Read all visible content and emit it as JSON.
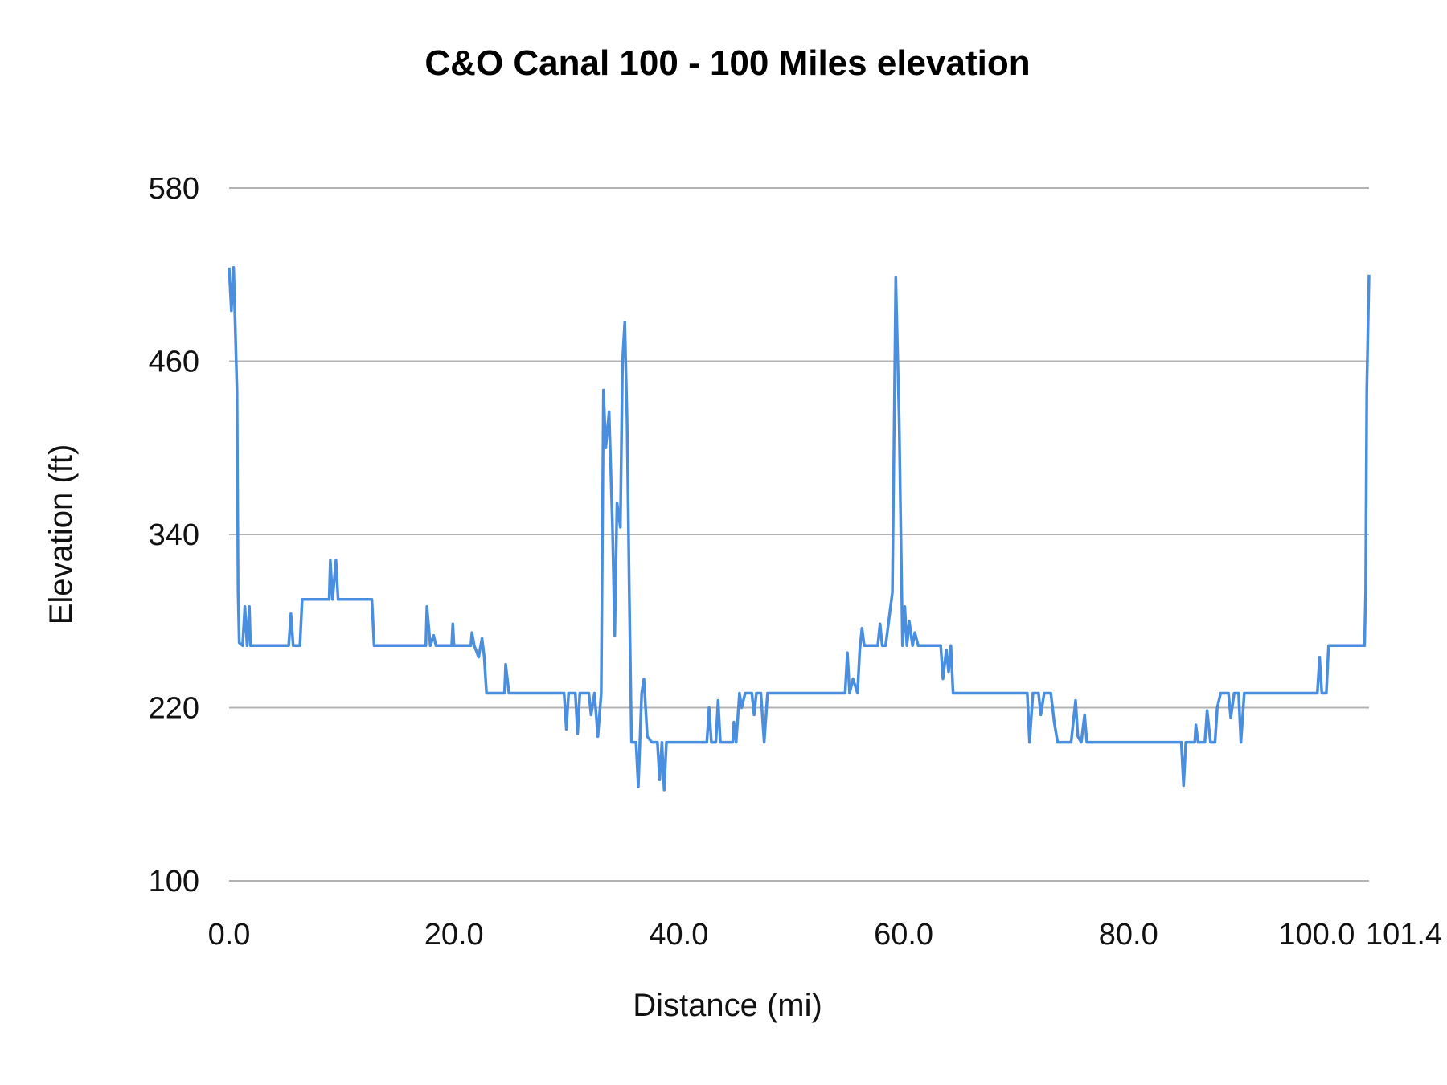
{
  "chart_data": {
    "type": "line",
    "title": "C&O Canal 100 - 100 Miles elevation",
    "xlabel": "Distance (mi)",
    "ylabel": "Elevation (ft)",
    "xlim": [
      0,
      101.4
    ],
    "ylim": [
      100,
      580
    ],
    "x_ticks": [
      0,
      20,
      40,
      60,
      80,
      100,
      101.4
    ],
    "x_tick_labels": [
      "0.0",
      "20.0",
      "40.0",
      "60.0",
      "80.0",
      "100.0",
      "101.4"
    ],
    "y_ticks": [
      100,
      220,
      340,
      460,
      580
    ],
    "y_tick_labels": [
      "100",
      "220",
      "340",
      "460",
      "580"
    ],
    "grid": "horizontal",
    "legend": "none",
    "colors": {
      "series": "#4a8ee0",
      "grid": "#b3b3b3"
    },
    "series": [
      {
        "points": [
          [
            0.0,
            525
          ],
          [
            0.2,
            495
          ],
          [
            0.4,
            525
          ],
          [
            0.7,
            440
          ],
          [
            0.8,
            300
          ],
          [
            0.9,
            265
          ],
          [
            1.2,
            263
          ],
          [
            1.4,
            290
          ],
          [
            1.6,
            263
          ],
          [
            1.8,
            290
          ],
          [
            1.9,
            263
          ],
          [
            5.3,
            263
          ],
          [
            5.5,
            285
          ],
          [
            5.7,
            263
          ],
          [
            6.3,
            263
          ],
          [
            6.5,
            295
          ],
          [
            8.9,
            295
          ],
          [
            9.0,
            322
          ],
          [
            9.2,
            295
          ],
          [
            9.5,
            322
          ],
          [
            9.7,
            295
          ],
          [
            12.7,
            295
          ],
          [
            12.9,
            263
          ],
          [
            17.5,
            263
          ],
          [
            17.6,
            290
          ],
          [
            17.9,
            263
          ],
          [
            18.2,
            270
          ],
          [
            18.4,
            263
          ],
          [
            19.8,
            263
          ],
          [
            19.9,
            278
          ],
          [
            20.0,
            263
          ],
          [
            21.5,
            263
          ],
          [
            21.6,
            272
          ],
          [
            21.8,
            263
          ],
          [
            22.2,
            255
          ],
          [
            22.5,
            268
          ],
          [
            22.7,
            255
          ],
          [
            22.9,
            230
          ],
          [
            24.5,
            230
          ],
          [
            24.6,
            250
          ],
          [
            24.9,
            230
          ],
          [
            29.8,
            230
          ],
          [
            30.0,
            205
          ],
          [
            30.2,
            230
          ],
          [
            30.8,
            230
          ],
          [
            31.0,
            202
          ],
          [
            31.2,
            230
          ],
          [
            32.0,
            230
          ],
          [
            32.2,
            215
          ],
          [
            32.5,
            230
          ],
          [
            32.8,
            200
          ],
          [
            33.1,
            230
          ],
          [
            33.3,
            440
          ],
          [
            33.5,
            400
          ],
          [
            33.8,
            425
          ],
          [
            34.1,
            345
          ],
          [
            34.3,
            270
          ],
          [
            34.5,
            362
          ],
          [
            34.8,
            345
          ],
          [
            35.0,
            460
          ],
          [
            35.2,
            487
          ],
          [
            35.4,
            420
          ],
          [
            35.6,
            300
          ],
          [
            35.8,
            196
          ],
          [
            36.2,
            196
          ],
          [
            36.4,
            165
          ],
          [
            36.7,
            230
          ],
          [
            36.9,
            240
          ],
          [
            37.2,
            200
          ],
          [
            37.6,
            196
          ],
          [
            38.1,
            196
          ],
          [
            38.3,
            170
          ],
          [
            38.5,
            196
          ],
          [
            38.7,
            163
          ],
          [
            38.9,
            196
          ],
          [
            42.5,
            196
          ],
          [
            42.7,
            220
          ],
          [
            42.9,
            196
          ],
          [
            43.3,
            196
          ],
          [
            43.5,
            225
          ],
          [
            43.7,
            196
          ],
          [
            44.8,
            196
          ],
          [
            44.9,
            210
          ],
          [
            45.1,
            196
          ],
          [
            45.4,
            230
          ],
          [
            45.6,
            220
          ],
          [
            45.9,
            230
          ],
          [
            46.5,
            230
          ],
          [
            46.7,
            215
          ],
          [
            46.9,
            230
          ],
          [
            47.3,
            230
          ],
          [
            47.6,
            196
          ],
          [
            47.9,
            230
          ],
          [
            54.8,
            230
          ],
          [
            55.0,
            258
          ],
          [
            55.2,
            230
          ],
          [
            55.5,
            240
          ],
          [
            55.9,
            230
          ],
          [
            56.1,
            260
          ],
          [
            56.3,
            275
          ],
          [
            56.5,
            263
          ],
          [
            57.7,
            263
          ],
          [
            57.9,
            278
          ],
          [
            58.1,
            263
          ],
          [
            58.4,
            263
          ],
          [
            59.0,
            300
          ],
          [
            59.3,
            518
          ],
          [
            59.6,
            420
          ],
          [
            59.9,
            263
          ],
          [
            60.1,
            290
          ],
          [
            60.3,
            263
          ],
          [
            60.5,
            280
          ],
          [
            60.8,
            263
          ],
          [
            61.0,
            272
          ],
          [
            61.3,
            263
          ],
          [
            63.3,
            263
          ],
          [
            63.5,
            240
          ],
          [
            63.8,
            260
          ],
          [
            64.0,
            245
          ],
          [
            64.2,
            263
          ],
          [
            64.4,
            230
          ],
          [
            71.0,
            230
          ],
          [
            71.2,
            196
          ],
          [
            71.5,
            230
          ],
          [
            72.0,
            230
          ],
          [
            72.2,
            215
          ],
          [
            72.5,
            230
          ],
          [
            73.1,
            230
          ],
          [
            73.4,
            210
          ],
          [
            73.7,
            196
          ],
          [
            74.9,
            196
          ],
          [
            75.3,
            225
          ],
          [
            75.5,
            200
          ],
          [
            75.8,
            196
          ],
          [
            76.1,
            215
          ],
          [
            76.3,
            196
          ],
          [
            84.7,
            196
          ],
          [
            84.9,
            166
          ],
          [
            85.1,
            196
          ],
          [
            85.9,
            196
          ],
          [
            86.0,
            208
          ],
          [
            86.2,
            196
          ],
          [
            86.8,
            196
          ],
          [
            87.0,
            218
          ],
          [
            87.3,
            196
          ],
          [
            87.7,
            196
          ],
          [
            87.9,
            220
          ],
          [
            88.2,
            230
          ],
          [
            88.9,
            230
          ],
          [
            89.1,
            213
          ],
          [
            89.4,
            230
          ],
          [
            89.8,
            230
          ],
          [
            90.0,
            196
          ],
          [
            90.3,
            230
          ],
          [
            96.8,
            230
          ],
          [
            97.0,
            255
          ],
          [
            97.2,
            230
          ],
          [
            97.6,
            230
          ],
          [
            97.8,
            263
          ],
          [
            101.0,
            263
          ],
          [
            101.1,
            300
          ],
          [
            101.2,
            440
          ],
          [
            101.4,
            520
          ]
        ]
      }
    ]
  }
}
